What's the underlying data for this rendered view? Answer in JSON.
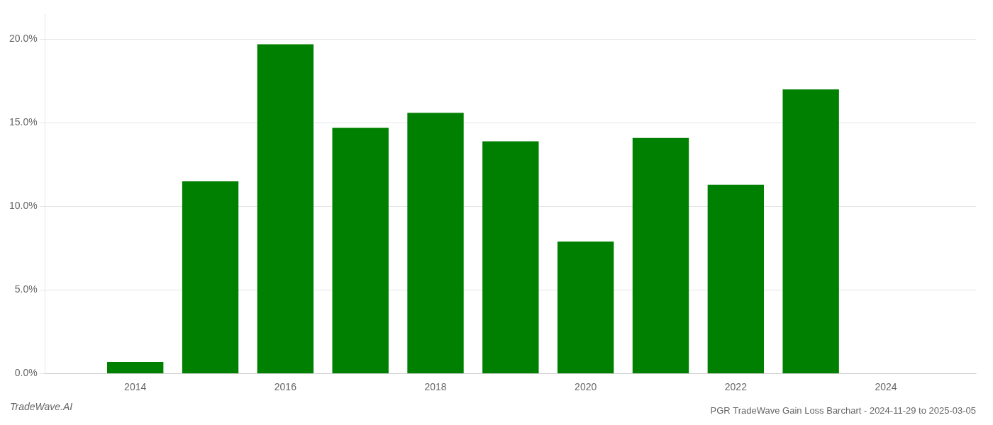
{
  "chart_data": {
    "type": "bar",
    "title": "PGR TradeWave Gain Loss Barchart - 2024-11-29 to 2025-03-05",
    "annotations": [
      "TradeWave.AI"
    ],
    "x": [
      2014,
      2015,
      2016,
      2017,
      2018,
      2019,
      2020,
      2021,
      2022,
      2023
    ],
    "values": [
      0.007,
      0.115,
      0.197,
      0.147,
      0.156,
      0.139,
      0.079,
      0.141,
      0.113,
      0.17
    ],
    "color": "#008000",
    "xlim": [
      2012.8,
      2025.2
    ],
    "xticks": [
      2014,
      2016,
      2018,
      2020,
      2022,
      2024
    ],
    "ylim": [
      0,
      0.215
    ],
    "yticks": [
      {
        "value": 0.0,
        "label": "0.0%"
      },
      {
        "value": 0.05,
        "label": "5.0%"
      },
      {
        "value": 0.1,
        "label": "10.0%"
      },
      {
        "value": 0.15,
        "label": "15.0%"
      },
      {
        "value": 0.2,
        "label": "20.0%"
      }
    ],
    "grid": "y"
  }
}
